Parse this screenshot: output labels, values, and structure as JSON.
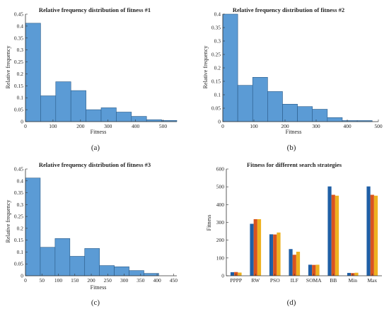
{
  "chart_data": [
    {
      "type": "bar",
      "panel": "histogram",
      "title": "Relative frequency distribution of fitness #1",
      "xlabel": "Fitness",
      "ylabel": "Relative frequency",
      "caption": "(a)",
      "xlim": [
        0,
        550
      ],
      "ylim": [
        0,
        0.45
      ],
      "xticks": [
        0,
        100,
        200,
        300,
        400,
        500
      ],
      "yticks": [
        0,
        0.05,
        0.1,
        0.15,
        0.2,
        0.25,
        0.3,
        0.35,
        0.4,
        0.45
      ],
      "ytick_labels": [
        "0",
        "0.05",
        "0.1",
        "0.15",
        "0.2",
        "0.25",
        "0.3",
        "0.35",
        "0.4",
        "0.45"
      ],
      "bins": [
        {
          "x0": 0,
          "x1": 55,
          "value": 0.412
        },
        {
          "x0": 55,
          "x1": 110,
          "value": 0.108
        },
        {
          "x0": 110,
          "x1": 165,
          "value": 0.167
        },
        {
          "x0": 165,
          "x1": 220,
          "value": 0.13
        },
        {
          "x0": 220,
          "x1": 275,
          "value": 0.05
        },
        {
          "x0": 275,
          "x1": 330,
          "value": 0.058
        },
        {
          "x0": 330,
          "x1": 385,
          "value": 0.04
        },
        {
          "x0": 385,
          "x1": 440,
          "value": 0.022
        },
        {
          "x0": 440,
          "x1": 495,
          "value": 0.008
        },
        {
          "x0": 495,
          "x1": 550,
          "value": 0.005
        }
      ],
      "color": "#5b9bd5"
    },
    {
      "type": "bar",
      "panel": "histogram",
      "title": "Relative frequency distribution of fitness #2",
      "xlabel": "Fitness",
      "ylabel": "Relative frequency",
      "caption": "(b)",
      "xlim": [
        0,
        500
      ],
      "ylim": [
        0,
        0.4
      ],
      "xticks": [
        0,
        100,
        200,
        300,
        400,
        500
      ],
      "yticks": [
        0,
        0.05,
        0.1,
        0.15,
        0.2,
        0.25,
        0.3,
        0.35,
        0.4
      ],
      "ytick_labels": [
        "0",
        "0.05",
        "0.1",
        "0.15",
        "0.2",
        "0.25",
        "0.3",
        "0.35",
        "0.4"
      ],
      "bins": [
        {
          "x0": 0,
          "x1": 48,
          "value": 0.4
        },
        {
          "x0": 48,
          "x1": 96,
          "value": 0.135
        },
        {
          "x0": 96,
          "x1": 144,
          "value": 0.165
        },
        {
          "x0": 144,
          "x1": 192,
          "value": 0.112
        },
        {
          "x0": 192,
          "x1": 240,
          "value": 0.065
        },
        {
          "x0": 240,
          "x1": 288,
          "value": 0.056
        },
        {
          "x0": 288,
          "x1": 336,
          "value": 0.046
        },
        {
          "x0": 336,
          "x1": 384,
          "value": 0.015
        },
        {
          "x0": 384,
          "x1": 432,
          "value": 0.004
        },
        {
          "x0": 432,
          "x1": 480,
          "value": 0.004
        }
      ],
      "color": "#5b9bd5"
    },
    {
      "type": "bar",
      "panel": "histogram",
      "title": "Relative frequency distribution of fitness #3",
      "xlabel": "Fitness",
      "ylabel": "Relative frequency",
      "caption": "(c)",
      "xlim": [
        0,
        460
      ],
      "ylim": [
        0,
        0.45
      ],
      "xticks": [
        0,
        50,
        100,
        150,
        200,
        250,
        300,
        350,
        400,
        450
      ],
      "yticks": [
        0,
        0.05,
        0.1,
        0.15,
        0.2,
        0.25,
        0.3,
        0.35,
        0.4,
        0.45
      ],
      "ytick_labels": [
        "0",
        "0.05",
        "0.1",
        "0.15",
        "0.2",
        "0.25",
        "0.3",
        "0.35",
        "0.4",
        "0.45"
      ],
      "bins": [
        {
          "x0": 0,
          "x1": 45,
          "value": 0.412
        },
        {
          "x0": 45,
          "x1": 90,
          "value": 0.12
        },
        {
          "x0": 90,
          "x1": 135,
          "value": 0.157
        },
        {
          "x0": 135,
          "x1": 180,
          "value": 0.082
        },
        {
          "x0": 180,
          "x1": 225,
          "value": 0.115
        },
        {
          "x0": 225,
          "x1": 270,
          "value": 0.043
        },
        {
          "x0": 270,
          "x1": 315,
          "value": 0.038
        },
        {
          "x0": 315,
          "x1": 360,
          "value": 0.022
        },
        {
          "x0": 360,
          "x1": 405,
          "value": 0.01
        }
      ],
      "color": "#5b9bd5"
    },
    {
      "type": "bar",
      "panel": "grouped",
      "title": "Fitness for different search strategies",
      "xlabel": "",
      "ylabel": "Fitness",
      "caption": "(d)",
      "ylim": [
        0,
        600
      ],
      "yticks": [
        0,
        100,
        200,
        300,
        400,
        500,
        600
      ],
      "ytick_labels": [
        "0",
        "100",
        "200",
        "300",
        "400",
        "500",
        "600"
      ],
      "categories": [
        "PPPP",
        "RW",
        "PSO",
        "ILF",
        "SOMA",
        "BB",
        "Min",
        "Max"
      ],
      "series": [
        {
          "color": "#1f5fa6",
          "values": [
            20,
            292,
            233,
            150,
            62,
            502,
            16,
            502
          ]
        },
        {
          "color": "#d9541e",
          "values": [
            21,
            318,
            232,
            118,
            61,
            455,
            15,
            455
          ]
        },
        {
          "color": "#eeb220",
          "values": [
            18,
            318,
            243,
            135,
            62,
            450,
            17,
            450
          ]
        }
      ]
    }
  ]
}
